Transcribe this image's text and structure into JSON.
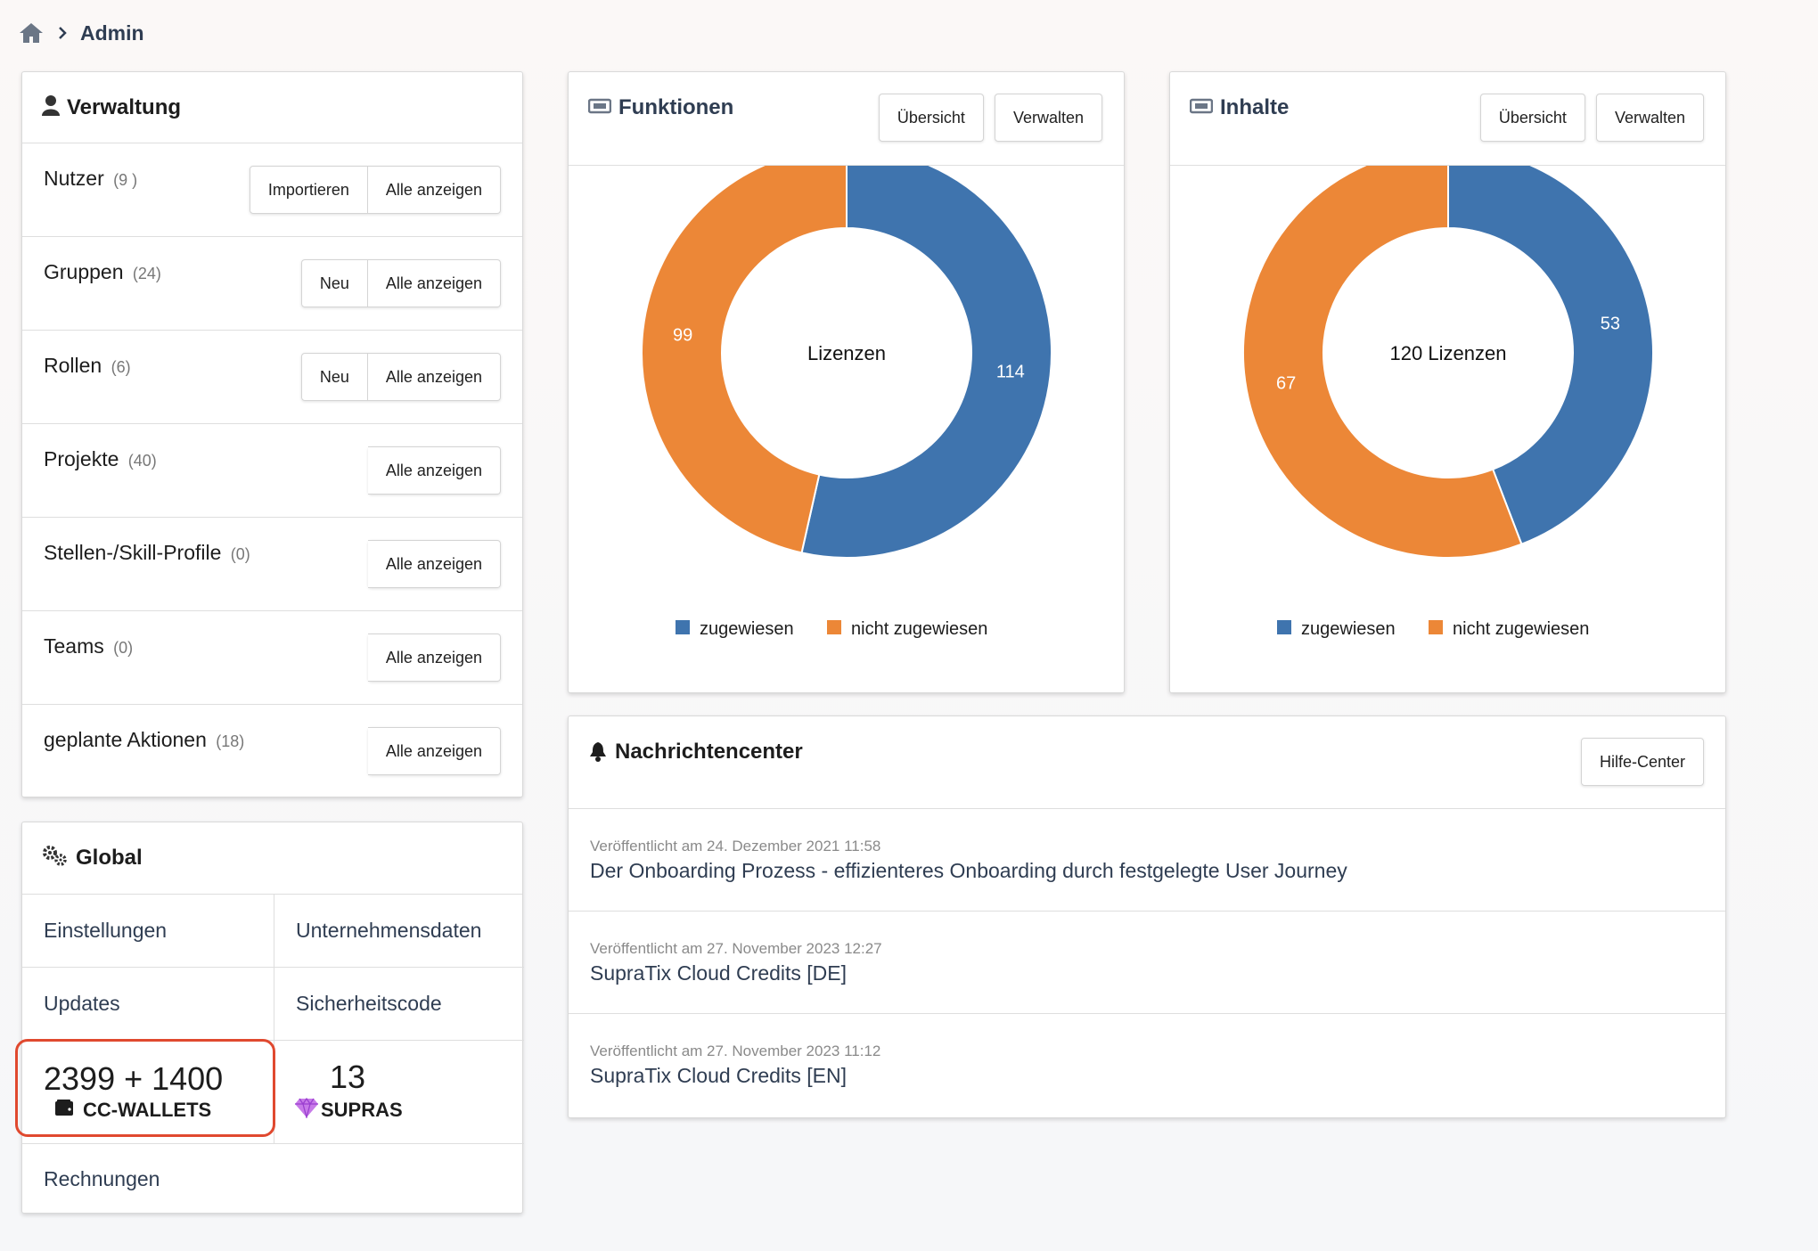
{
  "breadcrumb": {
    "home_icon": "home-icon",
    "separator_icon": "chevron-right-icon",
    "current": "Admin"
  },
  "verwaltung": {
    "title": "Verwaltung",
    "icon": "user-icon",
    "rows": [
      {
        "label": "Nutzer",
        "count": "(9 )",
        "buttons": [
          "Importieren",
          "Alle anzeigen"
        ]
      },
      {
        "label": "Gruppen",
        "count": "(24)",
        "buttons": [
          "Neu",
          "Alle anzeigen"
        ]
      },
      {
        "label": "Rollen",
        "count": "(6)",
        "buttons": [
          "Neu",
          "Alle anzeigen"
        ]
      },
      {
        "label": "Projekte",
        "count": "(40)",
        "buttons": [
          "Alle anzeigen"
        ]
      },
      {
        "label": "Stellen-/Skill-Profile",
        "count": "(0)",
        "buttons": [
          "Alle anzeigen"
        ]
      },
      {
        "label": "Teams",
        "count": "(0)",
        "buttons": [
          "Alle anzeigen"
        ]
      },
      {
        "label": "geplante Aktionen",
        "count": "(18)",
        "buttons": [
          "Alle anzeigen"
        ]
      }
    ]
  },
  "global": {
    "title": "Global",
    "icon": "gears-icon",
    "links": {
      "einstellungen": "Einstellungen",
      "unternehmensdaten": "Unternehmensdaten",
      "updates": "Updates",
      "sicherheitscode": "Sicherheitscode",
      "rechnungen": "Rechnungen"
    },
    "wallets": {
      "value": "2399 + 1400",
      "label": "CC-WALLETS",
      "icon": "wallet-icon"
    },
    "supras": {
      "value": "13",
      "label": "SUPRAS",
      "icon": "gem-icon"
    },
    "highlight_color": "#e0492f"
  },
  "funktionen": {
    "title": "Funktionen",
    "icon": "ticket-icon",
    "buttons": {
      "overview": "Übersicht",
      "manage": "Verwalten"
    }
  },
  "inhalte": {
    "title": "Inhalte",
    "icon": "ticket-icon",
    "buttons": {
      "overview": "Übersicht",
      "manage": "Verwalten"
    }
  },
  "chart_data": [
    {
      "type": "pie",
      "donut": true,
      "center_label": "Lizenzen",
      "categories": [
        "zugewiesen",
        "nicht zugewiesen"
      ],
      "values": [
        114,
        99
      ],
      "colors": [
        "#3f74ae",
        "#ec8737"
      ],
      "legend": "bottom"
    },
    {
      "type": "pie",
      "donut": true,
      "center_label": "120 Lizenzen",
      "categories": [
        "zugewiesen",
        "nicht zugewiesen"
      ],
      "values": [
        53,
        67
      ],
      "colors": [
        "#3f74ae",
        "#ec8737"
      ],
      "legend": "bottom"
    }
  ],
  "nachrichten": {
    "title": "Nachrichtencenter",
    "icon": "bell-icon",
    "help_button": "Hilfe-Center",
    "items": [
      {
        "date": "Veröffentlicht am 24. Dezember 2021 11:58",
        "title": "Der Onboarding Prozess - effizienteres Onboarding durch festgelegte User Journey"
      },
      {
        "date": "Veröffentlicht am 27. November 2023 12:27",
        "title": "SupraTix Cloud Credits [DE]"
      },
      {
        "date": "Veröffentlicht am 27. November 2023 11:12",
        "title": "SupraTix Cloud Credits [EN]"
      }
    ]
  }
}
